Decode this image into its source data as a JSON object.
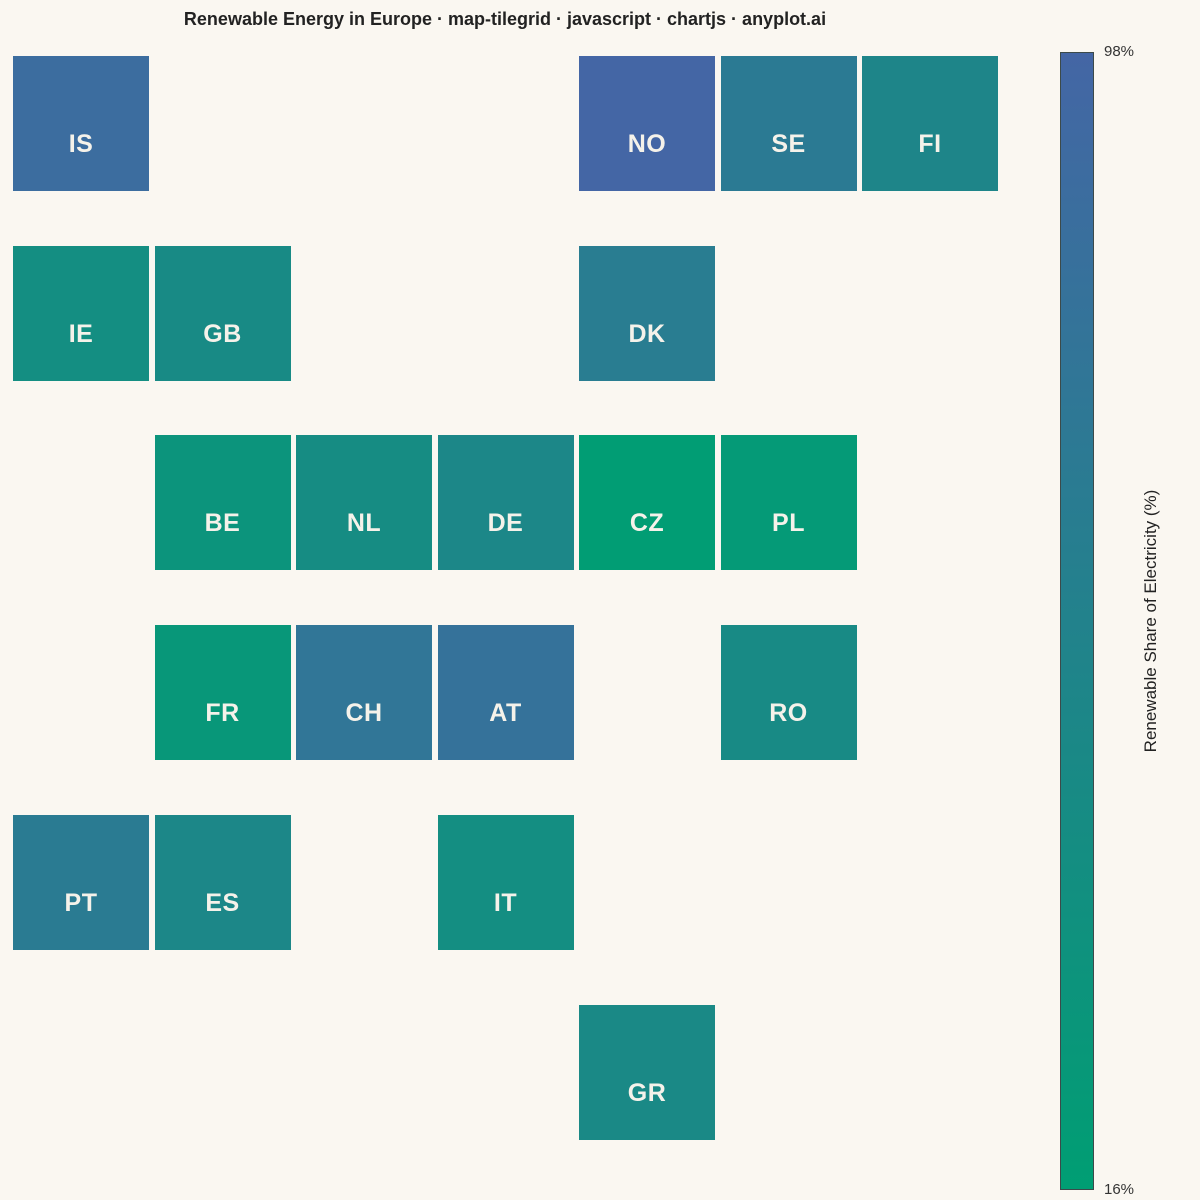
{
  "title": "Renewable Energy in Europe · map-tilegrid · javascript · chartjs · anyplot.ai",
  "chart_data": {
    "type": "heatmap",
    "title": "Renewable Energy in Europe · map-tilegrid · javascript · chartjs · anyplot.ai",
    "colorbar": {
      "label": "Renewable Share of Electricity (%)",
      "min": 16,
      "max": 98,
      "min_label": "16%",
      "max_label": "98%",
      "color_low": "#009E73",
      "color_high": "#4466A5"
    },
    "tiles": [
      {
        "code": "IS",
        "row": 0,
        "col": 0,
        "value": 88
      },
      {
        "code": "NO",
        "row": 0,
        "col": 4,
        "value": 98
      },
      {
        "code": "SE",
        "row": 0,
        "col": 5,
        "value": 68
      },
      {
        "code": "FI",
        "row": 0,
        "col": 6,
        "value": 52
      },
      {
        "code": "IE",
        "row": 1,
        "col": 0,
        "value": 40
      },
      {
        "code": "GB",
        "row": 1,
        "col": 1,
        "value": 45
      },
      {
        "code": "DK",
        "row": 1,
        "col": 4,
        "value": 65
      },
      {
        "code": "BE",
        "row": 2,
        "col": 1,
        "value": 30
      },
      {
        "code": "NL",
        "row": 2,
        "col": 2,
        "value": 42
      },
      {
        "code": "DE",
        "row": 2,
        "col": 3,
        "value": 50
      },
      {
        "code": "CZ",
        "row": 2,
        "col": 4,
        "value": 17
      },
      {
        "code": "PL",
        "row": 2,
        "col": 5,
        "value": 22
      },
      {
        "code": "FR",
        "row": 3,
        "col": 1,
        "value": 26
      },
      {
        "code": "CH",
        "row": 3,
        "col": 2,
        "value": 75
      },
      {
        "code": "AT",
        "row": 3,
        "col": 3,
        "value": 80
      },
      {
        "code": "RO",
        "row": 3,
        "col": 5,
        "value": 45
      },
      {
        "code": "PT",
        "row": 4,
        "col": 0,
        "value": 67
      },
      {
        "code": "ES",
        "row": 4,
        "col": 1,
        "value": 50
      },
      {
        "code": "IT",
        "row": 4,
        "col": 3,
        "value": 40
      },
      {
        "code": "GR",
        "row": 5,
        "col": 4,
        "value": 47
      }
    ]
  }
}
